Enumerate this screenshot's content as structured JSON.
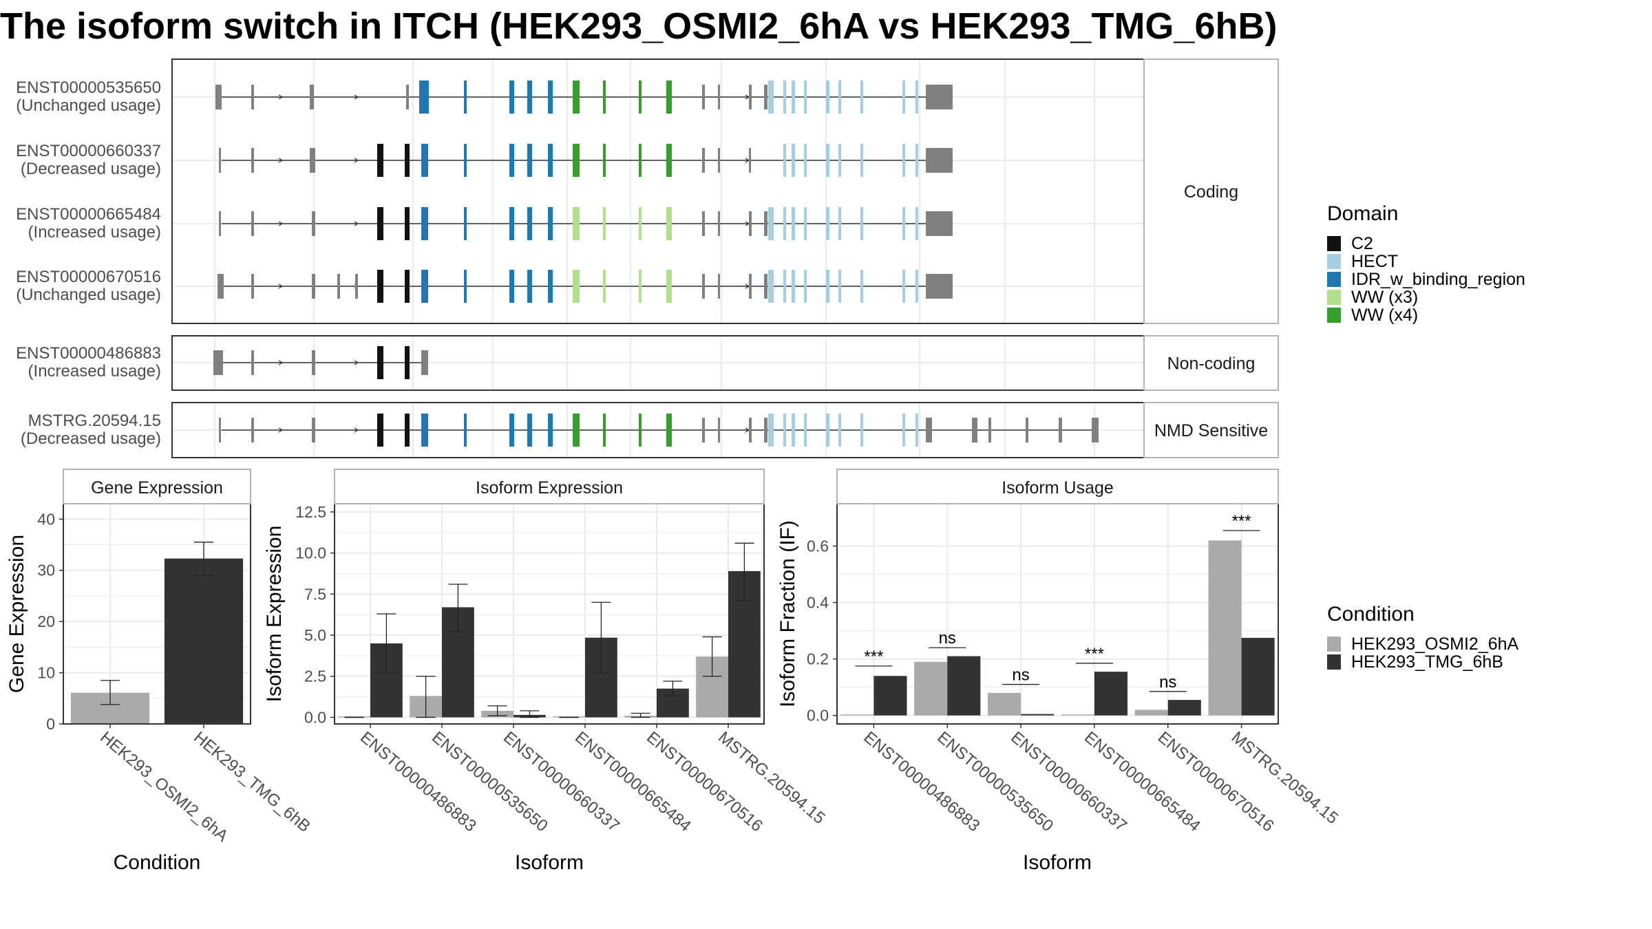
{
  "title": "The isoform switch in ITCH (HEK293_OSMI2_6hA vs HEK293_TMG_6hB)",
  "colors": {
    "C2": "#111111",
    "HECT": "#a6cee3",
    "IDR_w_binding_region": "#1f78b4",
    "WW_x3": "#b2df8a",
    "WW_x4": "#33a02c",
    "exon": "#808080",
    "intron": "#333333",
    "cond_a": "#aaaaaa",
    "cond_b": "#333333",
    "panel_border": "#333333",
    "strip_border": "#b3b3b3",
    "grid": "#ebebeb"
  },
  "structure": {
    "sections": [
      {
        "label": "Coding",
        "rows": [
          {
            "id": "ENST00000535650",
            "usage": "(Unchanged usage)"
          },
          {
            "id": "ENST00000660337",
            "usage": "(Decreased usage)"
          },
          {
            "id": "ENST00000665484",
            "usage": "(Increased usage)"
          },
          {
            "id": "ENST00000670516",
            "usage": "(Unchanged usage)"
          }
        ]
      },
      {
        "label": "Non-coding",
        "rows": [
          {
            "id": "ENST00000486883",
            "usage": "(Increased usage)"
          }
        ]
      },
      {
        "label": "NMD Sensitive",
        "rows": [
          {
            "id": "MSTRG.20594.15",
            "usage": "(Decreased usage)"
          }
        ]
      }
    ],
    "legend": {
      "title": "Domain",
      "items": [
        {
          "label": "C2",
          "color_key": "C2"
        },
        {
          "label": "HECT",
          "color_key": "HECT"
        },
        {
          "label": "IDR_w_binding_region",
          "color_key": "IDR_w_binding_region"
        },
        {
          "label": "WW (x3)",
          "color_key": "WW_x3"
        },
        {
          "label": "WW (x4)",
          "color_key": "WW_x4"
        }
      ]
    }
  },
  "chart_data": [
    {
      "type": "bar",
      "title": "Gene Expression",
      "xlabel": "Condition",
      "ylabel": "Gene Expression",
      "categories": [
        "HEK293_OSMI2_6hA",
        "HEK293_TMG_6hB"
      ],
      "values": [
        6.1,
        32.3
      ],
      "err_low": [
        3.8,
        29.0
      ],
      "err_high": [
        8.5,
        35.5
      ],
      "ylim": [
        0,
        43
      ],
      "yticks": [
        0,
        10,
        20,
        30,
        40
      ],
      "ytick_labels": [
        "0",
        "10",
        "20",
        "30",
        "40"
      ],
      "grid": true
    },
    {
      "type": "bar",
      "title": "Isoform Expression",
      "xlabel": "Isoform",
      "ylabel": "Isoform Expression",
      "categories": [
        "ENST00000486883",
        "ENST00000535650",
        "ENST00000660337",
        "ENST00000665484",
        "ENST00000670516",
        "MSTRG.20594.15"
      ],
      "series": [
        {
          "name": "HEK293_OSMI2_6hA",
          "values": [
            0.0,
            1.3,
            0.4,
            0.0,
            0.1,
            3.7
          ],
          "err_low": [
            0.0,
            0.0,
            0.1,
            0.0,
            0.0,
            2.5
          ],
          "err_high": [
            0.0,
            2.5,
            0.7,
            0.0,
            0.25,
            4.9
          ]
        },
        {
          "name": "HEK293_TMG_6hB",
          "values": [
            4.5,
            6.7,
            0.15,
            4.85,
            1.75,
            8.9
          ],
          "err_low": [
            2.7,
            5.2,
            0.0,
            2.7,
            1.3,
            7.1
          ],
          "err_high": [
            6.3,
            8.1,
            0.4,
            7.0,
            2.2,
            10.6
          ]
        }
      ],
      "ylim": [
        -0.4,
        13.0
      ],
      "yticks": [
        0,
        2.5,
        5.0,
        7.5,
        10.0,
        12.5
      ],
      "ytick_labels": [
        "0.0",
        "2.5",
        "5.0",
        "7.5",
        "10.0",
        "12.5"
      ],
      "grid": true
    },
    {
      "type": "bar",
      "title": "Isoform Usage",
      "xlabel": "Isoform",
      "ylabel": "Isoform Fraction (IF)",
      "categories": [
        "ENST00000486883",
        "ENST00000535650",
        "ENST00000660337",
        "ENST00000665484",
        "ENST00000670516",
        "MSTRG.20594.15"
      ],
      "series": [
        {
          "name": "HEK293_OSMI2_6hA",
          "values": [
            0.0,
            0.19,
            0.08,
            0.0,
            0.02,
            0.62
          ]
        },
        {
          "name": "HEK293_TMG_6hB",
          "values": [
            0.14,
            0.21,
            0.005,
            0.155,
            0.055,
            0.275
          ]
        }
      ],
      "annotations": [
        {
          "text": "***",
          "y": 0.175
        },
        {
          "text": "ns",
          "y": 0.24
        },
        {
          "text": "ns",
          "y": 0.11
        },
        {
          "text": "***",
          "y": 0.185
        },
        {
          "text": "ns",
          "y": 0.085
        },
        {
          "text": "***",
          "y": 0.655
        }
      ],
      "ylim": [
        -0.03,
        0.75
      ],
      "yticks": [
        0,
        0.2,
        0.4,
        0.6
      ],
      "ytick_labels": [
        "0.0",
        "0.2",
        "0.4",
        "0.6"
      ],
      "grid": true
    }
  ],
  "condition_legend": {
    "title": "Condition",
    "items": [
      {
        "label": "HEK293_OSMI2_6hA",
        "color_key": "cond_a"
      },
      {
        "label": "HEK293_TMG_6hB",
        "color_key": "cond_b"
      }
    ]
  }
}
